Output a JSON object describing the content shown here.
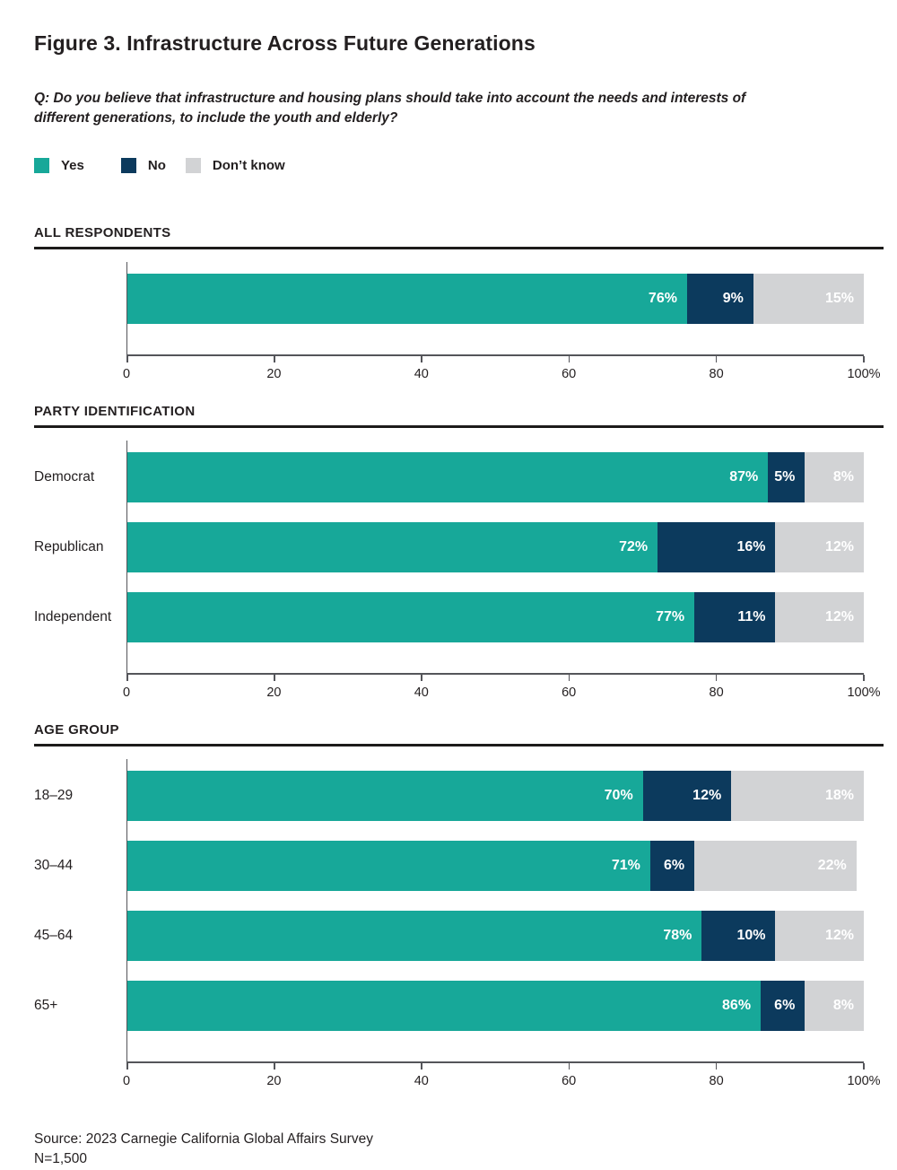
{
  "figure": {
    "title": "Figure 3. Infrastructure Across Future Generations",
    "question": "Q: Do you believe that infrastructure and housing plans should take into account the needs and interests of different generations, to include the youth and elderly?",
    "source": "Source: 2023 Carnegie California Global Affairs Survey",
    "sample_size": "N=1,500"
  },
  "colors": {
    "yes": "#17A899",
    "no": "#0C3A5D",
    "dont_know": "#D2D3D5",
    "axis": "#54555A",
    "text": "#231F20",
    "value_label": "#FFFFFF"
  },
  "legend": {
    "items": [
      {
        "label": "Yes",
        "color_key": "yes"
      },
      {
        "label": "No",
        "color_key": "no"
      },
      {
        "label": "Don’t know",
        "color_key": "dont_know"
      }
    ]
  },
  "chart_data": [
    {
      "type": "bar",
      "orientation": "horizontal",
      "stacked": true,
      "section": "ALL RESPONDENTS",
      "categories": [
        ""
      ],
      "series": [
        {
          "name": "Yes",
          "color_key": "yes",
          "values": [
            76
          ]
        },
        {
          "name": "No",
          "color_key": "no",
          "values": [
            9
          ]
        },
        {
          "name": "Don’t know",
          "color_key": "dont_know",
          "values": [
            15
          ]
        }
      ],
      "value_suffix": "%",
      "x_ticks": [
        "0",
        "20",
        "40",
        "60",
        "80",
        "100%"
      ],
      "xlim": [
        0,
        100
      ],
      "grid": false,
      "legend_position": "top"
    },
    {
      "type": "bar",
      "orientation": "horizontal",
      "stacked": true,
      "section": "PARTY IDENTIFICATION",
      "categories": [
        "Democrat",
        "Republican",
        "Independent"
      ],
      "series": [
        {
          "name": "Yes",
          "color_key": "yes",
          "values": [
            87,
            72,
            77
          ]
        },
        {
          "name": "No",
          "color_key": "no",
          "values": [
            5,
            16,
            11
          ]
        },
        {
          "name": "Don’t know",
          "color_key": "dont_know",
          "values": [
            8,
            12,
            12
          ]
        }
      ],
      "value_suffix": "%",
      "x_ticks": [
        "0",
        "20",
        "40",
        "60",
        "80",
        "100%"
      ],
      "xlim": [
        0,
        100
      ],
      "grid": false,
      "legend_position": "top"
    },
    {
      "type": "bar",
      "orientation": "horizontal",
      "stacked": true,
      "section": "AGE GROUP",
      "categories": [
        "18–29",
        "30–44",
        "45–64",
        "65+"
      ],
      "series": [
        {
          "name": "Yes",
          "color_key": "yes",
          "values": [
            70,
            71,
            78,
            86
          ]
        },
        {
          "name": "No",
          "color_key": "no",
          "values": [
            12,
            6,
            10,
            6
          ]
        },
        {
          "name": "Don’t know",
          "color_key": "dont_know",
          "values": [
            18,
            22,
            12,
            8
          ]
        }
      ],
      "value_suffix": "%",
      "x_ticks": [
        "0",
        "20",
        "40",
        "60",
        "80",
        "100%"
      ],
      "xlim": [
        0,
        100
      ],
      "grid": false,
      "legend_position": "top"
    }
  ]
}
